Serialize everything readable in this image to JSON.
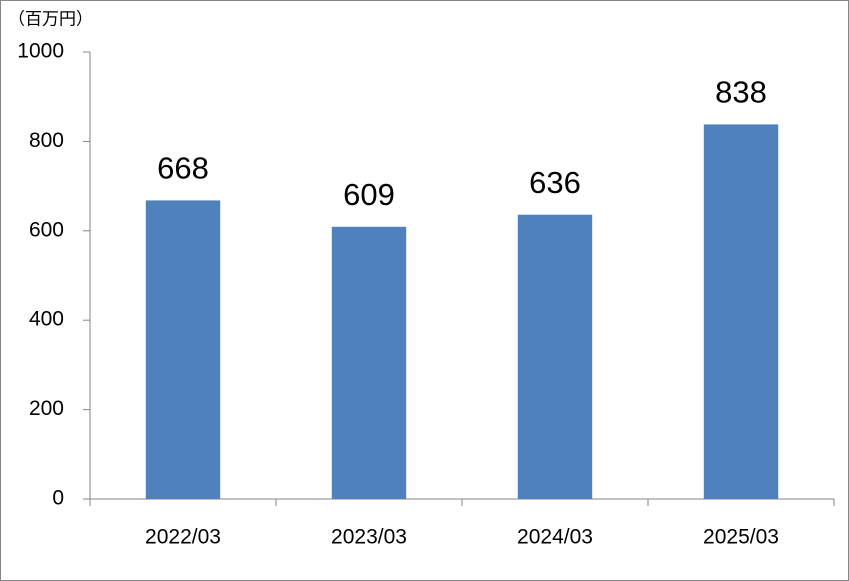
{
  "chart_data": {
    "type": "bar",
    "y_label": "（百万円）",
    "categories": [
      "2022/03",
      "2023/03",
      "2024/03",
      "2025/03"
    ],
    "values": [
      668,
      609,
      636,
      838
    ],
    "color": "#4f81bd",
    "ylim": [
      0,
      1000
    ],
    "yticks": [
      0,
      200,
      400,
      600,
      800,
      1000
    ],
    "grid": false
  }
}
